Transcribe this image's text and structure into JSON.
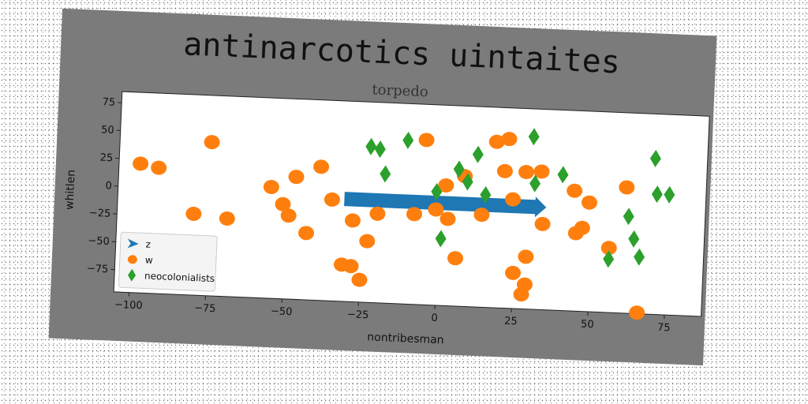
{
  "chart_data": {
    "type": "scatter",
    "title": "antinarcotics uintaites",
    "subtitle": "torpedo",
    "xlabel": "nontribesman",
    "ylabel": "whitlen",
    "xlim": [
      -105,
      87
    ],
    "ylim": [
      -95,
      85
    ],
    "xticks": [
      -100,
      -75,
      -50,
      -25,
      0,
      25,
      50,
      75
    ],
    "yticks": [
      75,
      50,
      25,
      0,
      -25,
      -50,
      -75
    ],
    "grid": false,
    "legend_position": "lower-left",
    "series": [
      {
        "name": "z",
        "marker": "arrow",
        "color": "#1f77b4",
        "points": [
          [
            -31,
            -3
          ],
          [
            35,
            -3
          ]
        ]
      },
      {
        "name": "w",
        "marker": "circle",
        "color": "#ff7f0e",
        "points": [
          [
            -98,
            21
          ],
          [
            -92,
            18
          ],
          [
            -75,
            43
          ],
          [
            -80,
            -22
          ],
          [
            -69,
            -25
          ],
          [
            -55,
            5
          ],
          [
            -51,
            -10
          ],
          [
            -49,
            -20
          ],
          [
            -47,
            15
          ],
          [
            -43,
            -35
          ],
          [
            -39,
            25
          ],
          [
            -35,
            -4
          ],
          [
            -31,
            -62
          ],
          [
            -28,
            -63
          ],
          [
            -28,
            -22
          ],
          [
            -25,
            -75
          ],
          [
            -23,
            -40
          ],
          [
            -20,
            -15
          ],
          [
            -8,
            -14
          ],
          [
            -5,
            53
          ],
          [
            -1,
            -9
          ],
          [
            2,
            13
          ],
          [
            3,
            -17
          ],
          [
            6,
            -52
          ],
          [
            8,
            22
          ],
          [
            14,
            -12
          ],
          [
            18,
            54
          ],
          [
            22,
            57
          ],
          [
            21,
            28
          ],
          [
            24,
            3
          ],
          [
            25,
            -63
          ],
          [
            28,
            -82
          ],
          [
            28,
            28
          ],
          [
            29,
            -48
          ],
          [
            29,
            -73
          ],
          [
            33,
            29
          ],
          [
            34,
            -18
          ],
          [
            44,
            13
          ],
          [
            45,
            -25
          ],
          [
            47,
            -20
          ],
          [
            49,
            3
          ],
          [
            56,
            -37
          ],
          [
            61,
            18
          ],
          [
            66,
            -94
          ]
        ]
      },
      {
        "name": "neocolonialists",
        "marker": "diamond",
        "color": "#2ca02c",
        "points": [
          [
            -23,
            45
          ],
          [
            -20,
            43
          ],
          [
            -18,
            21
          ],
          [
            -11,
            52
          ],
          [
            -1,
            7
          ],
          [
            1,
            -35
          ],
          [
            6,
            28
          ],
          [
            9,
            17
          ],
          [
            12,
            42
          ],
          [
            15,
            6
          ],
          [
            30,
            60
          ],
          [
            31,
            18
          ],
          [
            40,
            27
          ],
          [
            56,
            -47
          ],
          [
            62,
            -8
          ],
          [
            64,
            -28
          ],
          [
            66,
            -44
          ],
          [
            70,
            45
          ],
          [
            71,
            13
          ],
          [
            75,
            13
          ]
        ]
      }
    ]
  }
}
